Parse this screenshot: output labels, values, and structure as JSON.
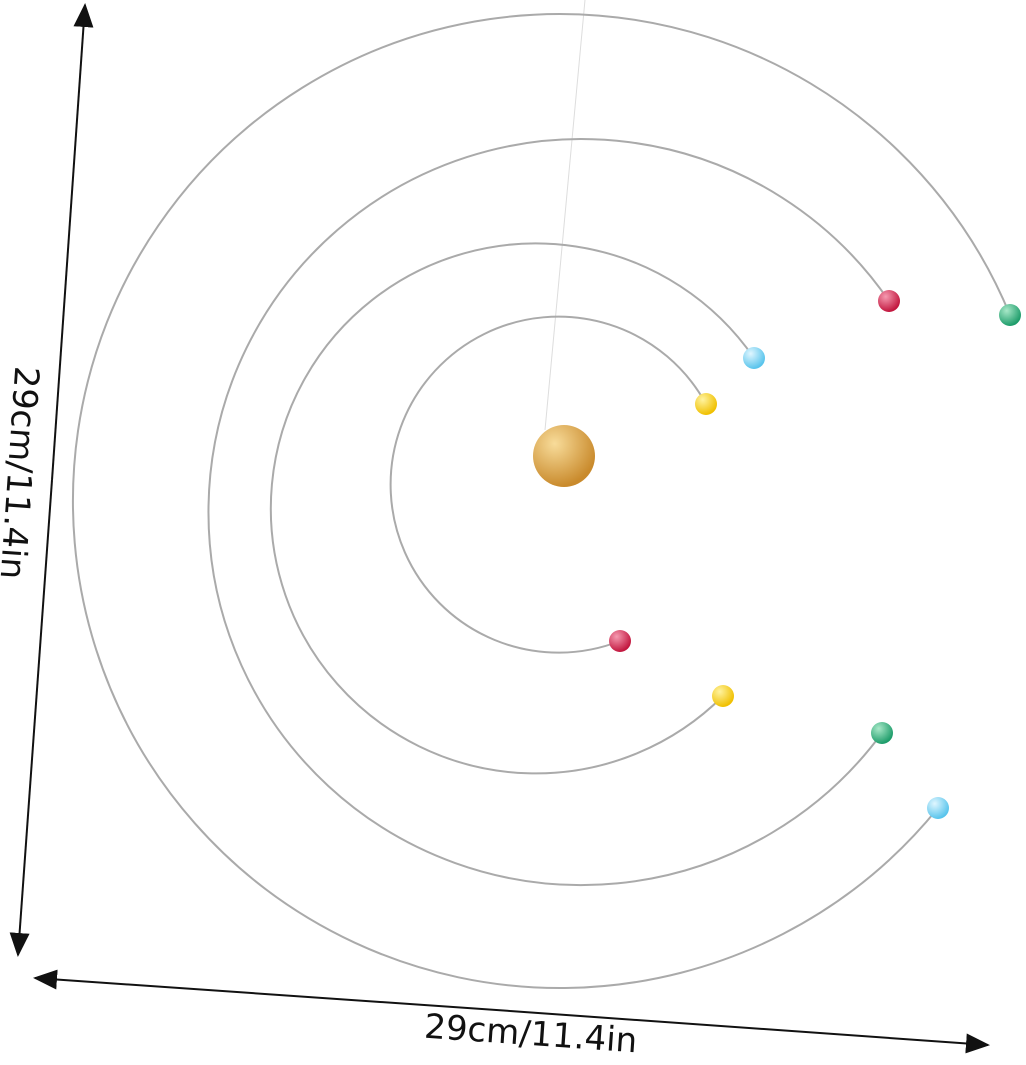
{
  "dimensions": {
    "height": "29cm/11.4in",
    "width": "29cm/11.4in"
  }
}
